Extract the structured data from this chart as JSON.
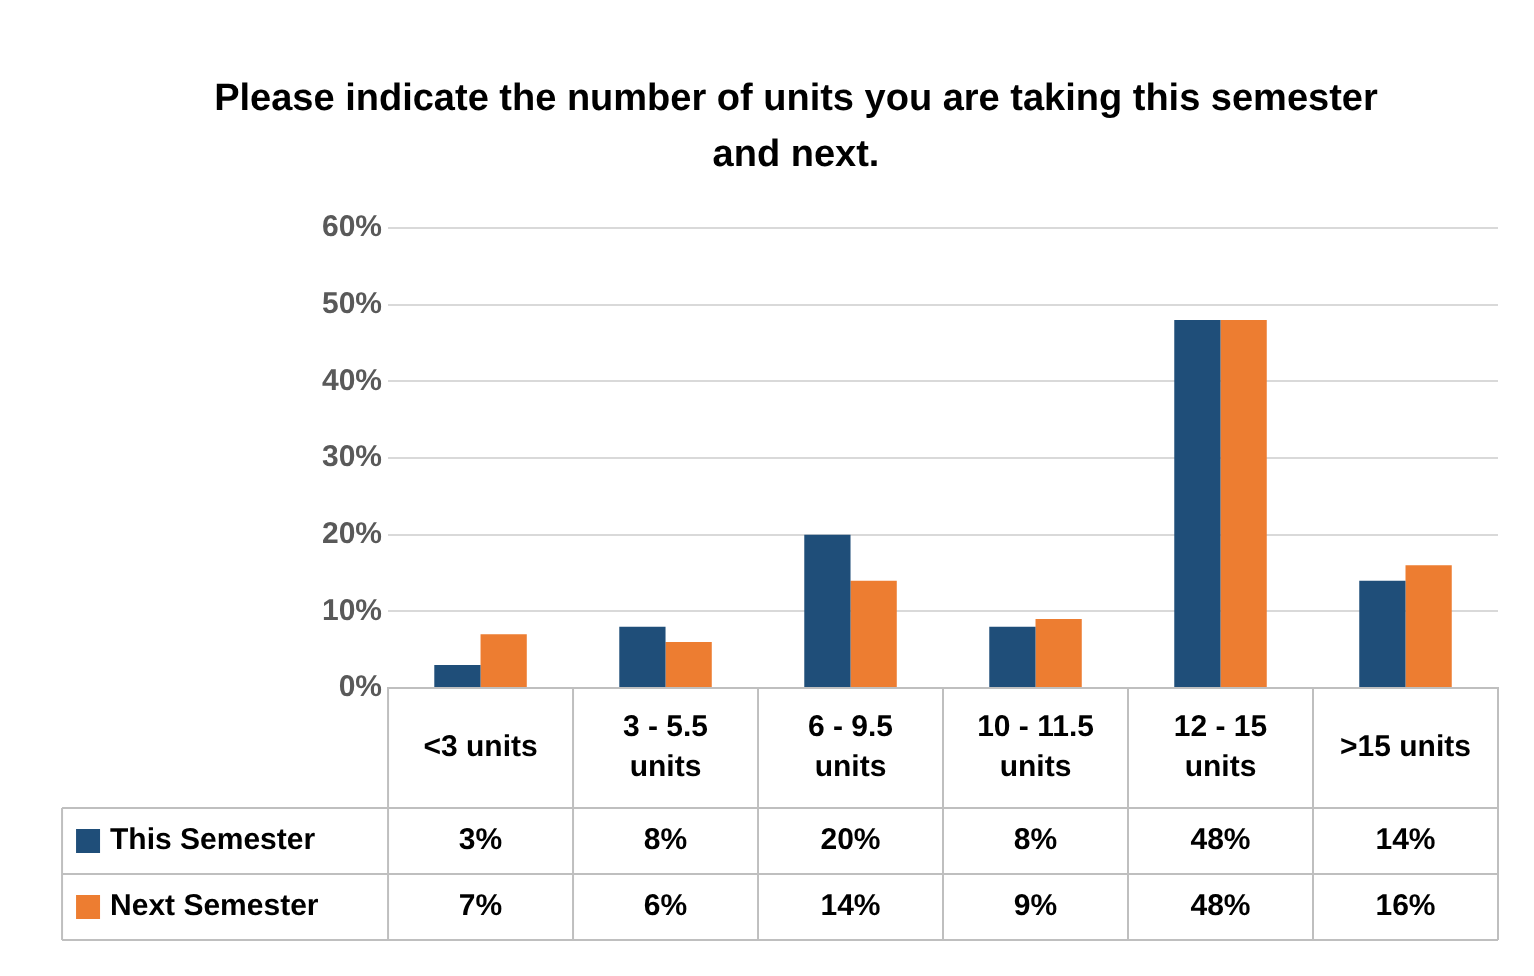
{
  "chart_data": {
    "type": "bar",
    "title": "Please indicate the number of units you are taking this semester and next.",
    "categories": [
      "<3 units",
      "3 - 5.5 units",
      "6 - 9.5 units",
      "10 - 11.5 units",
      "12 - 15 units",
      ">15 units"
    ],
    "series": [
      {
        "name": "This Semester",
        "color": "#1f4e79",
        "values": [
          3,
          8,
          20,
          8,
          48,
          14
        ],
        "value_labels": [
          "3%",
          "8%",
          "20%",
          "8%",
          "48%",
          "14%"
        ]
      },
      {
        "name": "Next Semester",
        "color": "#ed7d31",
        "values": [
          7,
          6,
          14,
          9,
          48,
          16
        ],
        "value_labels": [
          "7%",
          "6%",
          "14%",
          "9%",
          "48%",
          "16%"
        ]
      }
    ],
    "ylim": [
      0,
      60
    ],
    "yticks": [
      {
        "value": 0,
        "label": "0%"
      },
      {
        "value": 10,
        "label": "10%"
      },
      {
        "value": 20,
        "label": "20%"
      },
      {
        "value": 30,
        "label": "30%"
      },
      {
        "value": 40,
        "label": "40%"
      },
      {
        "value": 50,
        "label": "50%"
      },
      {
        "value": 60,
        "label": "60%"
      }
    ],
    "grid": "y",
    "legend": "bottom"
  }
}
